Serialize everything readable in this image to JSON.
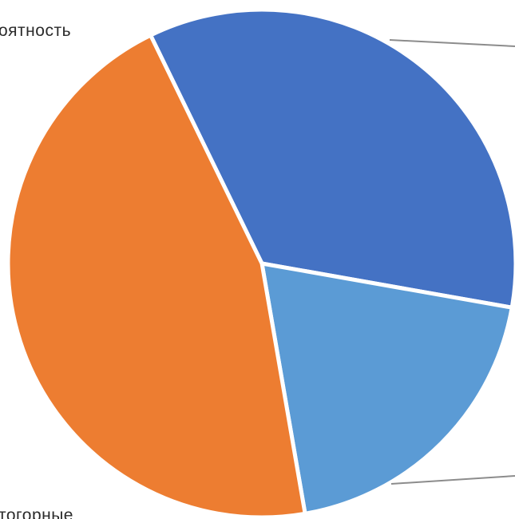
{
  "chart_data": {
    "type": "pie",
    "title": "",
    "slices": [
      {
        "label": "оятность",
        "value": 45.5,
        "color": "#ED7D31"
      },
      {
        "label": "",
        "value": 35.0,
        "color": "#4472C4"
      },
      {
        "label": "тогорные",
        "value": 19.5,
        "color": "#5B9BD5"
      }
    ],
    "legend": "none"
  }
}
